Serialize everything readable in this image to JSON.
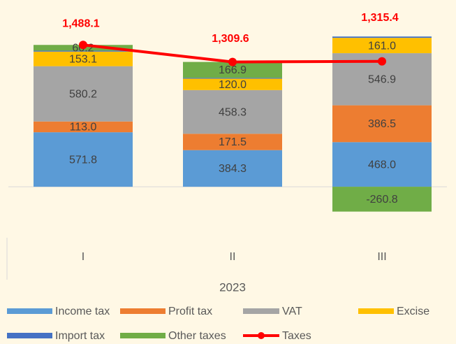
{
  "chart_data": {
    "type": "bar",
    "stacked": true,
    "categories": [
      "I",
      "II",
      "III"
    ],
    "xlabel": "2023",
    "ylim": [
      -400,
      1600
    ],
    "series": [
      {
        "name": "Income tax",
        "color": "#5B9BD5",
        "values": [
          571.8,
          384.3,
          468.0
        ],
        "value_labels": [
          "571.8",
          "384.3",
          "468.0"
        ]
      },
      {
        "name": "Profit tax",
        "color": "#ED7D31",
        "values": [
          113.0,
          171.5,
          386.5
        ],
        "value_labels": [
          "113.0",
          "171.5",
          "386.5"
        ]
      },
      {
        "name": "VAT",
        "color": "#A5A5A5",
        "values": [
          580.2,
          458.3,
          546.9
        ],
        "value_labels": [
          "580.2",
          "458.3",
          "546.9"
        ]
      },
      {
        "name": "Excise",
        "color": "#FFC000",
        "values": [
          153.1,
          120.0,
          161.0
        ],
        "value_labels": [
          "153.1",
          "120.0",
          "161.0"
        ]
      },
      {
        "name": "Import tax",
        "color": "#4472C4",
        "values": [
          9.8,
          8.6,
          13.8
        ]
      },
      {
        "name": "Other taxes",
        "color": "#70AD47",
        "values": [
          60.2,
          166.9,
          -260.8
        ],
        "value_labels": [
          "60.2",
          "166.9",
          "-260.8"
        ]
      },
      {
        "name": "Taxes",
        "type": "line",
        "color": "#FF0000",
        "values": [
          1488.1,
          1309.6,
          1315.4
        ],
        "value_labels": [
          "1,488.1",
          "1,309.6",
          "1,315.4"
        ]
      }
    ]
  }
}
